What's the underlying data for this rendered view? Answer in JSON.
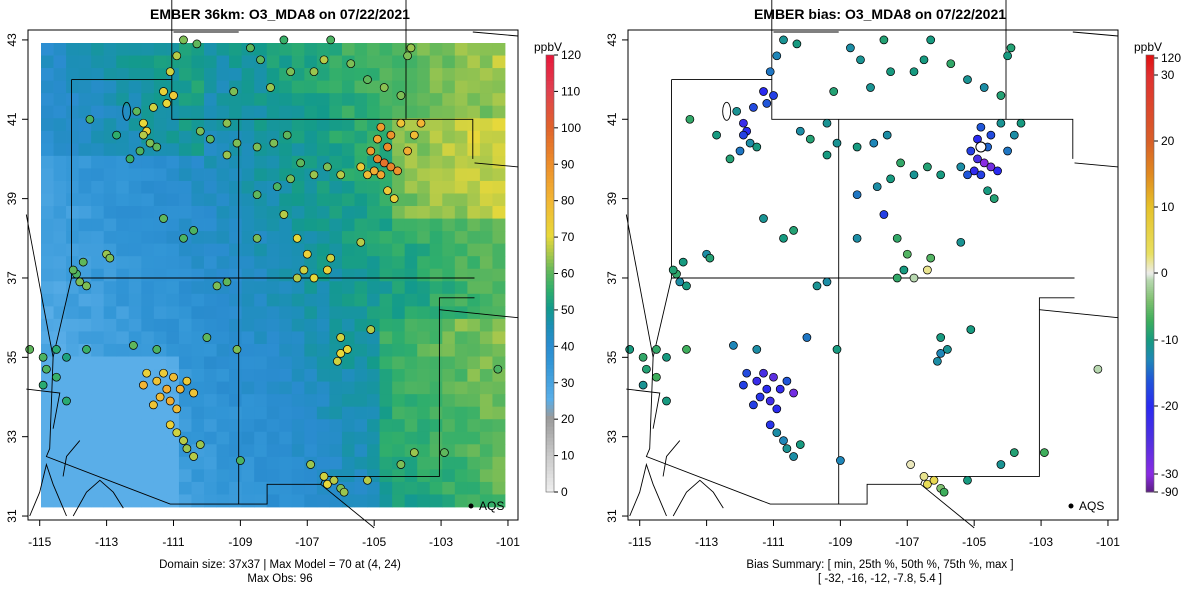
{
  "left": {
    "title": "EMBER 36km: O3_MDA8 on 07/22/2021",
    "footer_line1": "Domain size: 37x37 | Max Model = 70 at (4, 24)",
    "footer_line2": "Max Obs: 96",
    "legend_label": "AQS",
    "colorbar_unit": "ppbV",
    "colorbar_ticks": [
      "0",
      "10",
      "20",
      "30",
      "40",
      "50",
      "60",
      "70",
      "80",
      "90",
      "100",
      "110",
      "120"
    ]
  },
  "right": {
    "title": "EMBER bias: O3_MDA8 on 07/22/2021",
    "footer_line1": "Bias Summary: [ min, 25th %, 50th %, 75th %, max ]",
    "footer_line2": "[ -32,   -16,   -12,   -7.8,   5.4 ]",
    "legend_label": "AQS",
    "colorbar_unit": "ppbV",
    "colorbar_ticks": [
      "-90",
      "-30",
      "-20",
      "-10",
      "0",
      "10",
      "20",
      "30",
      "120"
    ]
  },
  "axes": {
    "x_ticks": [
      "-115",
      "-113",
      "-111",
      "-109",
      "-107",
      "-105",
      "-103",
      "-101"
    ],
    "y_ticks": [
      "31",
      "33",
      "35",
      "37",
      "39",
      "41",
      "43"
    ]
  }
}
